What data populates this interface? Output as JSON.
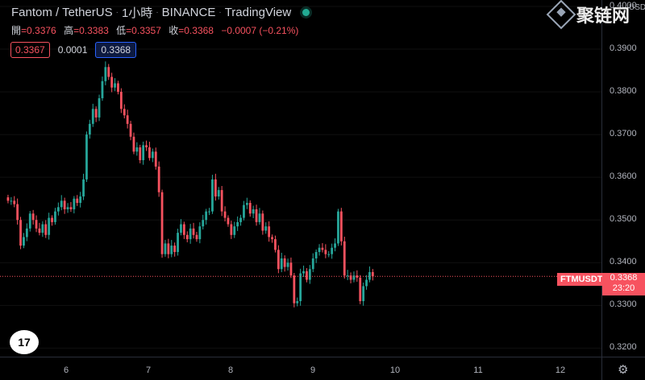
{
  "header": {
    "title_parts": [
      "Fantom / TetherUS",
      "1小時",
      "BINANCE",
      "TradingView"
    ]
  },
  "ohlc": {
    "open_label": "開",
    "open": "=0.3376",
    "high_label": "高",
    "high": "=0.3383",
    "low_label": "低",
    "low": "=0.3357",
    "close_label": "收",
    "close": "=0.3368",
    "change": "−0.0007 (−0.21%)"
  },
  "price_boxes": {
    "sell": "0.3367",
    "spread": "0.0001",
    "buy": "0.3368"
  },
  "y_axis": {
    "currency": "USDT",
    "ticks": [
      "0.4000",
      "0.3900",
      "0.3800",
      "0.3700",
      "0.3600",
      "0.3500",
      "0.3400",
      "0.3300",
      "0.3200"
    ]
  },
  "x_axis": {
    "ticks": [
      "6",
      "7",
      "8",
      "9",
      "10",
      "11",
      "12"
    ]
  },
  "current": {
    "symbol": "FTMUSDT",
    "price": "0.3368",
    "countdown": "23:20"
  },
  "logo": {
    "text": "17"
  },
  "watermark": {
    "text": "聚链网"
  },
  "colors": {
    "up": "#26a69a",
    "down": "#f7525f",
    "background": "#000000"
  },
  "chart_data": {
    "type": "candlestick",
    "ylim": [
      0.318,
      0.4015
    ],
    "x_day_ticks": [
      6,
      7,
      8,
      9,
      10,
      11,
      12
    ],
    "candles_close": [
      0.3545,
      0.3545,
      0.3537,
      0.35,
      0.344,
      0.346,
      0.348,
      0.3515,
      0.35,
      0.348,
      0.347,
      0.349,
      0.3465,
      0.3505,
      0.3495,
      0.352,
      0.353,
      0.3545,
      0.3525,
      0.353,
      0.3525,
      0.355,
      0.354,
      0.3555,
      0.3595,
      0.37,
      0.3725,
      0.376,
      0.374,
      0.3785,
      0.3825,
      0.3858,
      0.3835,
      0.381,
      0.382,
      0.38,
      0.376,
      0.3745,
      0.3725,
      0.3695,
      0.366,
      0.367,
      0.364,
      0.3675,
      0.367,
      0.3645,
      0.366,
      0.3625,
      0.3565,
      0.342,
      0.3445,
      0.342,
      0.344,
      0.3425,
      0.347,
      0.349,
      0.3465,
      0.3455,
      0.348,
      0.3465,
      0.3455,
      0.3485,
      0.35,
      0.352,
      0.352,
      0.3595,
      0.3555,
      0.357,
      0.352,
      0.3505,
      0.349,
      0.3465,
      0.3485,
      0.3495,
      0.3505,
      0.3535,
      0.354,
      0.3515,
      0.3525,
      0.3495,
      0.3515,
      0.3475,
      0.3485,
      0.346,
      0.3455,
      0.343,
      0.3385,
      0.341,
      0.339,
      0.34,
      0.337,
      0.3305,
      0.331,
      0.3375,
      0.338,
      0.336,
      0.3385,
      0.341,
      0.3425,
      0.3435,
      0.343,
      0.342,
      0.342,
      0.3435,
      0.3445,
      0.352,
      0.345,
      0.337,
      0.337,
      0.336,
      0.337,
      0.3365,
      0.331,
      0.3345,
      0.336,
      0.3378,
      0.3368
    ]
  }
}
